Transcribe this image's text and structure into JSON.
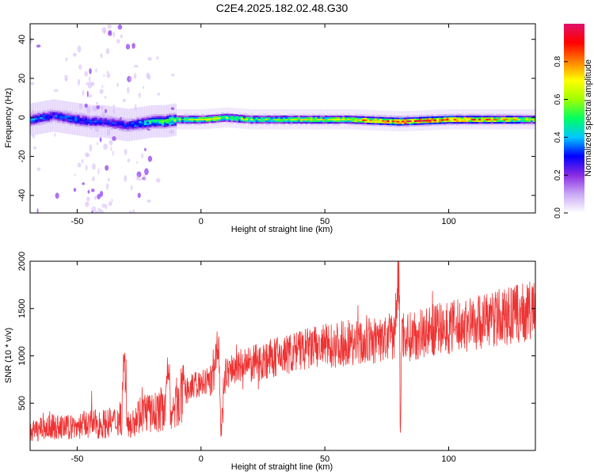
{
  "title": "C2E4.2025.182.02.48.G30",
  "chart_data": [
    {
      "type": "heatmap",
      "xlabel": "Height of straight line (km)",
      "ylabel": "Frequency (Hz)",
      "xlim": [
        -69,
        135
      ],
      "ylim": [
        -49,
        48
      ],
      "xticks": [
        -50,
        0,
        50,
        100
      ],
      "yticks": [
        -40,
        -20,
        0,
        20,
        40
      ],
      "grid": false,
      "colorbar": {
        "label": "Normalized spectral amplitude",
        "range": [
          0,
          1
        ],
        "ticks": [
          "0.0",
          "0.2",
          "0.4",
          "0.6",
          "0.8"
        ],
        "colors": [
          "#ffffff",
          "#c9a8f5",
          "#8a2be2",
          "#0000ff",
          "#00c8ff",
          "#00ff60",
          "#a0ff00",
          "#ffff00",
          "#ff8000",
          "#ff0000",
          "#e0106a"
        ]
      },
      "ridge": {
        "x": [
          -69,
          -60,
          -50,
          -45,
          -40,
          -35,
          -30,
          -25,
          -20,
          -15,
          -10,
          0,
          10,
          20,
          40,
          60,
          80,
          100,
          120,
          135
        ],
        "y": [
          -1,
          1,
          -1,
          -2,
          -2,
          -3,
          -4,
          -3,
          -2,
          -2,
          -1,
          -1,
          0,
          -1,
          -1,
          -1,
          -2,
          -1,
          -1,
          -1
        ],
        "amplitude": [
          0.35,
          0.3,
          0.35,
          0.3,
          0.3,
          0.3,
          0.3,
          0.4,
          0.45,
          0.5,
          0.55,
          0.6,
          0.6,
          0.55,
          0.6,
          0.65,
          0.9,
          0.85,
          0.75,
          0.6
        ]
      }
    },
    {
      "type": "line",
      "xlabel": "Height of straight line (km)",
      "ylabel": "SNR (10 * v/v)",
      "xlim": [
        -69,
        135
      ],
      "ylim": [
        0,
        2000
      ],
      "xticks": [
        -50,
        0,
        50,
        100
      ],
      "yticks": [
        500,
        1000,
        1500,
        2000
      ],
      "grid": false,
      "color": "#ee3333",
      "series": [
        {
          "x": [
            -69,
            -65,
            -60,
            -55,
            -50,
            -45,
            -40,
            -35,
            -32,
            -31,
            -30,
            -28,
            -25,
            -22,
            -20,
            -15,
            -13,
            -12,
            -10,
            -5,
            0,
            5,
            7,
            8,
            10,
            15,
            20,
            25,
            30,
            35,
            40,
            45,
            50,
            55,
            60,
            65,
            70,
            75,
            78,
            80,
            80.5,
            81,
            82,
            85,
            90,
            95,
            100,
            105,
            110,
            115,
            120,
            125,
            130,
            135
          ],
          "y": [
            200,
            220,
            250,
            240,
            260,
            280,
            280,
            300,
            350,
            1100,
            250,
            300,
            380,
            420,
            380,
            450,
            950,
            300,
            500,
            650,
            700,
            750,
            1200,
            200,
            820,
            880,
            900,
            950,
            980,
            1020,
            1050,
            1080,
            1100,
            1120,
            1150,
            1130,
            1160,
            1180,
            1200,
            1950,
            120,
            1250,
            1220,
            1200,
            1250,
            1280,
            1300,
            1320,
            1350,
            1380,
            1400,
            1420,
            1450,
            1480
          ]
        }
      ]
    }
  ]
}
